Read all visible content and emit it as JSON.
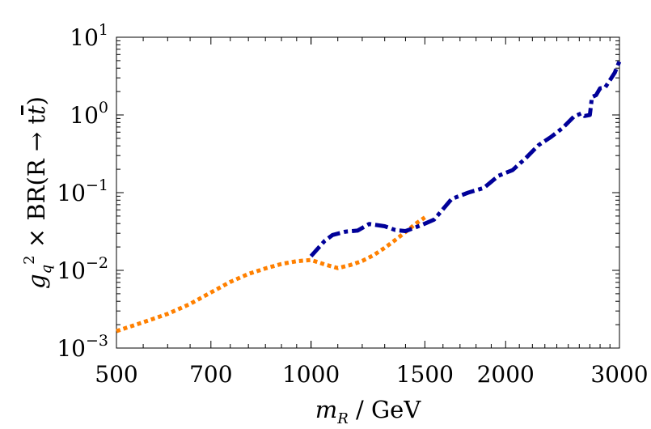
{
  "chart_data": {
    "type": "line",
    "xlabel": {
      "pre": "m",
      "sub": "R",
      "post": " / GeV"
    },
    "ylabel": {
      "g": "g",
      "sub": "q",
      "sup": "2",
      "rest": " × BR(R → t",
      "tbar": "t",
      "close": ")"
    },
    "x_scale": "log",
    "y_scale": "log",
    "xlim": [
      500,
      3000
    ],
    "ylim": [
      0.001,
      10
    ],
    "x_ticks": [
      {
        "value": 500,
        "label": "500"
      },
      {
        "value": 700,
        "label": "700"
      },
      {
        "value": 1000,
        "label": "1000"
      },
      {
        "value": 1500,
        "label": "1500"
      },
      {
        "value": 2000,
        "label": "2000"
      },
      {
        "value": 3000,
        "label": "3000"
      }
    ],
    "y_ticks": [
      {
        "value": 0.001,
        "base": "10",
        "exp": "−3"
      },
      {
        "value": 0.01,
        "base": "10",
        "exp": "−2"
      },
      {
        "value": 0.1,
        "base": "10",
        "exp": "−1"
      },
      {
        "value": 1,
        "base": "10",
        "exp": "0"
      },
      {
        "value": 10,
        "base": "10",
        "exp": "1"
      }
    ],
    "series": [
      {
        "color": "#ff8000",
        "style": "dotted",
        "points": [
          [
            500,
            0.00165
          ],
          [
            550,
            0.00215
          ],
          [
            600,
            0.00275
          ],
          [
            650,
            0.0037
          ],
          [
            700,
            0.0052
          ],
          [
            750,
            0.0071
          ],
          [
            800,
            0.009
          ],
          [
            850,
            0.0106
          ],
          [
            900,
            0.0121
          ],
          [
            950,
            0.0131
          ],
          [
            1000,
            0.0136
          ],
          [
            1050,
            0.0119
          ],
          [
            1100,
            0.0107
          ],
          [
            1150,
            0.0117
          ],
          [
            1200,
            0.0132
          ],
          [
            1250,
            0.0157
          ],
          [
            1300,
            0.0195
          ],
          [
            1350,
            0.0246
          ],
          [
            1400,
            0.0312
          ],
          [
            1450,
            0.0395
          ],
          [
            1500,
            0.048
          ]
        ]
      },
      {
        "color": "#000099",
        "style": "dashdot",
        "points": [
          [
            1000,
            0.0152
          ],
          [
            1050,
            0.024
          ],
          [
            1080,
            0.0285
          ],
          [
            1130,
            0.0315
          ],
          [
            1180,
            0.0325
          ],
          [
            1230,
            0.0395
          ],
          [
            1300,
            0.037
          ],
          [
            1350,
            0.033
          ],
          [
            1400,
            0.032
          ],
          [
            1480,
            0.038
          ],
          [
            1550,
            0.045
          ],
          [
            1650,
            0.083
          ],
          [
            1750,
            0.1
          ],
          [
            1850,
            0.115
          ],
          [
            1950,
            0.165
          ],
          [
            2050,
            0.195
          ],
          [
            2150,
            0.28
          ],
          [
            2250,
            0.41
          ],
          [
            2350,
            0.52
          ],
          [
            2450,
            0.68
          ],
          [
            2550,
            0.95
          ],
          [
            2620,
            1.05
          ],
          [
            2650,
            0.97
          ],
          [
            2700,
            1.0
          ],
          [
            2720,
            1.7
          ],
          [
            2760,
            1.8
          ],
          [
            2800,
            2.2
          ],
          [
            2850,
            2.25
          ],
          [
            2900,
            2.8
          ],
          [
            2950,
            3.5
          ],
          [
            3000,
            4.9
          ]
        ]
      }
    ]
  }
}
